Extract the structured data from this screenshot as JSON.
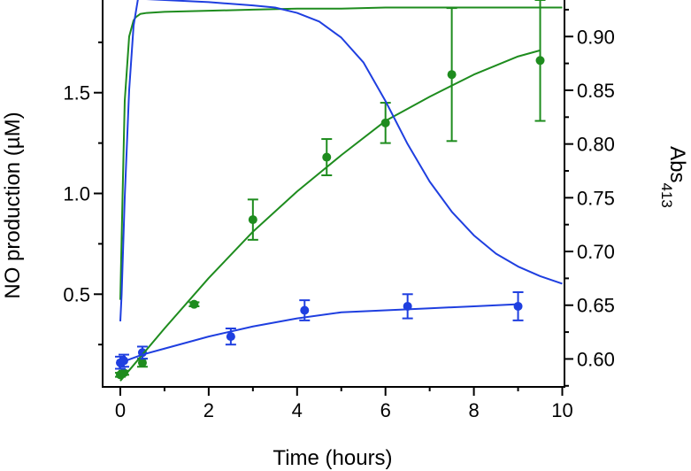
{
  "chart_data": {
    "type": "scatter",
    "title": "",
    "xlabel": "Time (hours)",
    "ylabel_left": "NO production (µM)",
    "ylabel_right": {
      "main": "Abs",
      "subscript": "413"
    },
    "xlim": [
      -0.4,
      10.05
    ],
    "ylim_left": [
      0.04,
      1.96
    ],
    "ylim_right": [
      0.574,
      0.934
    ],
    "x_ticks": [
      "0",
      "2",
      "4",
      "6",
      "8",
      "10"
    ],
    "y_left_ticks": [
      "0.5",
      "1.0",
      "1.5"
    ],
    "y_right_ticks": [
      "0.60",
      "0.65",
      "0.70",
      "0.75",
      "0.80",
      "0.85",
      "0.90"
    ],
    "colors": {
      "green": "#1e8c1e",
      "blue": "#1f3fe0",
      "axis": "#000000"
    },
    "series": [
      {
        "axis": "left",
        "color": "green",
        "kind": "points",
        "x": [
          0.0,
          0.08,
          0.5,
          1.67,
          3.0,
          4.67,
          6.0,
          7.5,
          9.5
        ],
        "y": [
          0.1,
          0.11,
          0.16,
          0.45,
          0.87,
          1.18,
          1.35,
          1.59,
          1.66
        ],
        "err": [
          0.01,
          0.01,
          0.02,
          0.01,
          0.1,
          0.09,
          0.1,
          0.33,
          0.3
        ]
      },
      {
        "axis": "left",
        "color": "blue",
        "kind": "points",
        "x": [
          0.0,
          0.08,
          0.5,
          2.5,
          4.17,
          6.5,
          9.0
        ],
        "y": [
          0.16,
          0.17,
          0.21,
          0.29,
          0.42,
          0.44,
          0.44
        ],
        "err": [
          0.03,
          0.03,
          0.03,
          0.04,
          0.05,
          0.06,
          0.07
        ]
      },
      {
        "axis": "left",
        "color": "green",
        "kind": "fit",
        "x": [
          0.0,
          0.5,
          1.0,
          2.0,
          3.0,
          4.0,
          5.0,
          6.0,
          7.0,
          8.0,
          9.0,
          9.5
        ],
        "y": [
          0.07,
          0.2,
          0.33,
          0.58,
          0.81,
          1.01,
          1.19,
          1.36,
          1.48,
          1.59,
          1.68,
          1.71
        ]
      },
      {
        "axis": "left",
        "color": "blue",
        "kind": "fit",
        "x": [
          0.0,
          0.5,
          1.0,
          2.0,
          3.0,
          4.0,
          5.0,
          6.0,
          7.0,
          8.0,
          9.0
        ],
        "y": [
          0.16,
          0.2,
          0.23,
          0.29,
          0.34,
          0.38,
          0.41,
          0.42,
          0.43,
          0.44,
          0.45
        ]
      },
      {
        "axis": "right",
        "color": "green",
        "kind": "trace",
        "x": [
          0.0,
          0.05,
          0.1,
          0.2,
          0.3,
          0.35,
          0.45,
          0.6,
          1.0,
          2.0,
          3.0,
          4.0,
          5.0,
          6.0,
          7.0,
          8.0,
          9.0,
          10.0
        ],
        "y": [
          0.655,
          0.75,
          0.84,
          0.9,
          0.915,
          0.918,
          0.921,
          0.922,
          0.923,
          0.924,
          0.925,
          0.926,
          0.926,
          0.927,
          0.927,
          0.927,
          0.927,
          0.927
        ]
      },
      {
        "axis": "right",
        "color": "blue",
        "kind": "trace",
        "x": [
          0.0,
          0.03,
          0.1,
          0.2,
          0.3,
          0.4,
          0.5,
          1.0,
          2.0,
          3.0,
          3.5,
          4.0,
          4.5,
          5.0,
          5.5,
          6.0,
          6.5,
          7.0,
          7.5,
          8.0,
          8.5,
          9.0,
          9.5,
          10.0
        ],
        "y": [
          0.635,
          0.66,
          0.75,
          0.85,
          0.91,
          0.935,
          0.935,
          0.934,
          0.932,
          0.929,
          0.927,
          0.922,
          0.914,
          0.899,
          0.876,
          0.84,
          0.8,
          0.765,
          0.737,
          0.715,
          0.698,
          0.686,
          0.677,
          0.67
        ]
      }
    ]
  }
}
